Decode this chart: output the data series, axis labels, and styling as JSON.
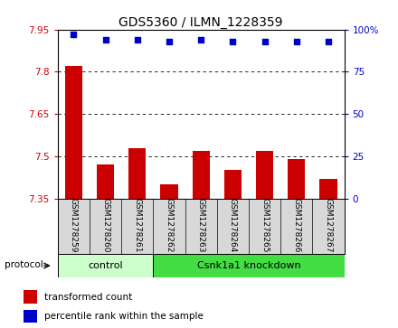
{
  "title": "GDS5360 / ILMN_1228359",
  "samples": [
    "GSM1278259",
    "GSM1278260",
    "GSM1278261",
    "GSM1278262",
    "GSM1278263",
    "GSM1278264",
    "GSM1278265",
    "GSM1278266",
    "GSM1278267"
  ],
  "bar_values": [
    7.82,
    7.47,
    7.53,
    7.4,
    7.52,
    7.45,
    7.52,
    7.49,
    7.42
  ],
  "dot_values": [
    97,
    94,
    94,
    93,
    94,
    93,
    93,
    93,
    93
  ],
  "ylim_left": [
    7.35,
    7.95
  ],
  "ylim_right": [
    0,
    100
  ],
  "yticks_left": [
    7.35,
    7.5,
    7.65,
    7.8,
    7.95
  ],
  "ytick_labels_left": [
    "7.35",
    "7.5",
    "7.65",
    "7.8",
    "7.95"
  ],
  "yticks_right": [
    0,
    25,
    50,
    75,
    100
  ],
  "ytick_labels_right": [
    "0",
    "25",
    "50",
    "75",
    "100%"
  ],
  "bar_color": "#cc0000",
  "dot_color": "#0000cc",
  "bar_bottom": 7.35,
  "groups": [
    {
      "label": "control",
      "indices": [
        0,
        1,
        2
      ],
      "color": "#ccffcc"
    },
    {
      "label": "Csnk1a1 knockdown",
      "indices": [
        3,
        4,
        5,
        6,
        7,
        8
      ],
      "color": "#44dd44"
    }
  ],
  "protocol_label": "protocol",
  "legend_bar_label": "transformed count",
  "legend_dot_label": "percentile rank within the sample",
  "sample_bg": "#d8d8d8",
  "plot_bg": "#ffffff"
}
